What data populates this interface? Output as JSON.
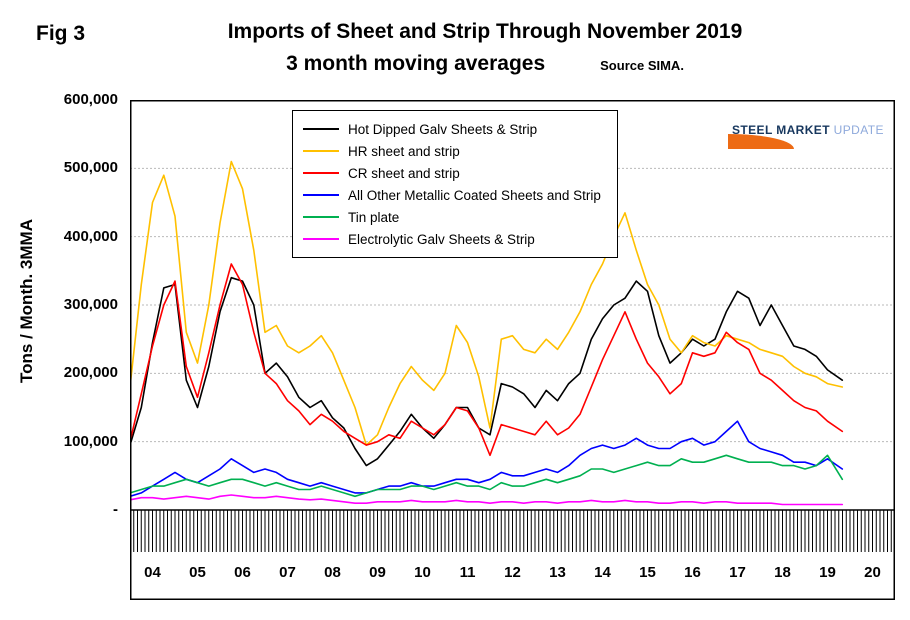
{
  "header": {
    "fig_label": "Fig 3",
    "title_line1": "Imports of Sheet and Strip Through November 2019",
    "title_line2": "3 month moving averages",
    "source": "Source SIMA."
  },
  "logo": {
    "steel": "STEEL",
    "market": "MARKET",
    "update": "UPDATE"
  },
  "chart_data": {
    "type": "line",
    "title": "Imports of Sheet and Strip Through November 2019",
    "subtitle": "3 month moving averages",
    "source": "Source SIMA.",
    "ylabel": "Tons / Month. 3MMA",
    "xlabel": "",
    "ylim": [
      0,
      600000
    ],
    "xlim": [
      2004,
      2021
    ],
    "grid": true,
    "legend_position": "top-inside",
    "y_ticks": [
      {
        "value": 600000,
        "label": "600,000"
      },
      {
        "value": 500000,
        "label": "500,000"
      },
      {
        "value": 400000,
        "label": "400,000"
      },
      {
        "value": 300000,
        "label": "300,000"
      },
      {
        "value": 200000,
        "label": "200,000"
      },
      {
        "value": 100000,
        "label": "100,000"
      },
      {
        "value": 0,
        "label": "-"
      }
    ],
    "x_ticks": [
      {
        "value": 2004.5,
        "label": "04"
      },
      {
        "value": 2005.5,
        "label": "05"
      },
      {
        "value": 2006.5,
        "label": "06"
      },
      {
        "value": 2007.5,
        "label": "07"
      },
      {
        "value": 2008.5,
        "label": "08"
      },
      {
        "value": 2009.5,
        "label": "09"
      },
      {
        "value": 2010.5,
        "label": "10"
      },
      {
        "value": 2011.5,
        "label": "11"
      },
      {
        "value": 2012.5,
        "label": "12"
      },
      {
        "value": 2013.5,
        "label": "13"
      },
      {
        "value": 2014.5,
        "label": "14"
      },
      {
        "value": 2015.5,
        "label": "15"
      },
      {
        "value": 2016.5,
        "label": "16"
      },
      {
        "value": 2017.5,
        "label": "17"
      },
      {
        "value": 2018.5,
        "label": "18"
      },
      {
        "value": 2019.5,
        "label": "19"
      },
      {
        "value": 2020.5,
        "label": "20"
      }
    ],
    "x": [
      2004,
      2004.25,
      2004.5,
      2004.75,
      2005,
      2005.25,
      2005.5,
      2005.75,
      2006,
      2006.25,
      2006.5,
      2006.75,
      2007,
      2007.25,
      2007.5,
      2007.75,
      2008,
      2008.25,
      2008.5,
      2008.75,
      2009,
      2009.25,
      2009.5,
      2009.75,
      2010,
      2010.25,
      2010.5,
      2010.75,
      2011,
      2011.25,
      2011.5,
      2011.75,
      2012,
      2012.25,
      2012.5,
      2012.75,
      2013,
      2013.25,
      2013.5,
      2013.75,
      2014,
      2014.25,
      2014.5,
      2014.75,
      2015,
      2015.25,
      2015.5,
      2015.75,
      2016,
      2016.25,
      2016.5,
      2016.75,
      2017,
      2017.25,
      2017.5,
      2017.75,
      2018,
      2018.25,
      2018.5,
      2018.75,
      2019,
      2019.25,
      2019.5,
      2019.83
    ],
    "series": [
      {
        "name": "Hot Dipped Galv Sheets & Strip",
        "color": "#000000",
        "values": [
          95000,
          150000,
          245000,
          325000,
          330000,
          190000,
          150000,
          210000,
          290000,
          340000,
          335000,
          300000,
          200000,
          215000,
          195000,
          165000,
          150000,
          160000,
          135000,
          120000,
          90000,
          65000,
          75000,
          95000,
          115000,
          140000,
          120000,
          105000,
          125000,
          150000,
          150000,
          120000,
          110000,
          185000,
          180000,
          170000,
          150000,
          175000,
          160000,
          185000,
          200000,
          250000,
          280000,
          300000,
          310000,
          335000,
          320000,
          255000,
          215000,
          230000,
          250000,
          240000,
          250000,
          290000,
          320000,
          310000,
          270000,
          300000,
          270000,
          240000,
          235000,
          225000,
          205000,
          190000
        ]
      },
      {
        "name": "HR sheet and strip",
        "color": "#FFC000",
        "values": [
          180000,
          330000,
          450000,
          490000,
          430000,
          260000,
          215000,
          300000,
          420000,
          510000,
          470000,
          380000,
          260000,
          270000,
          240000,
          230000,
          240000,
          255000,
          230000,
          190000,
          150000,
          95000,
          110000,
          150000,
          185000,
          210000,
          190000,
          175000,
          200000,
          270000,
          245000,
          195000,
          120000,
          250000,
          255000,
          235000,
          230000,
          250000,
          235000,
          260000,
          290000,
          330000,
          360000,
          400000,
          435000,
          380000,
          330000,
          300000,
          250000,
          230000,
          255000,
          245000,
          240000,
          255000,
          250000,
          245000,
          235000,
          230000,
          225000,
          210000,
          200000,
          195000,
          185000,
          180000
        ]
      },
      {
        "name": "CR sheet and strip",
        "color": "#FF0000",
        "values": [
          100000,
          170000,
          240000,
          300000,
          335000,
          210000,
          165000,
          230000,
          300000,
          360000,
          330000,
          260000,
          200000,
          185000,
          160000,
          145000,
          125000,
          140000,
          130000,
          115000,
          105000,
          95000,
          100000,
          110000,
          105000,
          130000,
          120000,
          110000,
          125000,
          150000,
          145000,
          120000,
          80000,
          125000,
          120000,
          115000,
          110000,
          130000,
          110000,
          120000,
          140000,
          180000,
          220000,
          255000,
          290000,
          250000,
          215000,
          195000,
          170000,
          185000,
          230000,
          225000,
          230000,
          260000,
          245000,
          235000,
          200000,
          190000,
          175000,
          160000,
          150000,
          145000,
          130000,
          115000
        ]
      },
      {
        "name": "All Other Metallic Coated Sheets and Strip",
        "color": "#0000FF",
        "values": [
          20000,
          25000,
          35000,
          45000,
          55000,
          45000,
          40000,
          50000,
          60000,
          75000,
          65000,
          55000,
          60000,
          55000,
          45000,
          40000,
          35000,
          40000,
          35000,
          30000,
          25000,
          25000,
          30000,
          35000,
          35000,
          40000,
          35000,
          35000,
          40000,
          45000,
          45000,
          40000,
          45000,
          55000,
          50000,
          50000,
          55000,
          60000,
          55000,
          65000,
          80000,
          90000,
          95000,
          90000,
          95000,
          105000,
          95000,
          90000,
          90000,
          100000,
          105000,
          95000,
          100000,
          115000,
          130000,
          100000,
          90000,
          85000,
          80000,
          70000,
          70000,
          65000,
          75000,
          60000
        ]
      },
      {
        "name": "Tin plate",
        "color": "#00B050",
        "values": [
          25000,
          30000,
          35000,
          35000,
          40000,
          45000,
          40000,
          35000,
          40000,
          45000,
          45000,
          40000,
          35000,
          40000,
          35000,
          30000,
          30000,
          35000,
          30000,
          25000,
          20000,
          25000,
          30000,
          30000,
          30000,
          35000,
          35000,
          30000,
          35000,
          40000,
          35000,
          35000,
          30000,
          40000,
          35000,
          35000,
          40000,
          45000,
          40000,
          45000,
          50000,
          60000,
          60000,
          55000,
          60000,
          65000,
          70000,
          65000,
          65000,
          75000,
          70000,
          70000,
          75000,
          80000,
          75000,
          70000,
          70000,
          70000,
          65000,
          65000,
          60000,
          65000,
          80000,
          45000
        ]
      },
      {
        "name": "Electrolytic Galv Sheets & Strip",
        "color": "#FF00FF",
        "values": [
          15000,
          18000,
          18000,
          16000,
          18000,
          20000,
          18000,
          16000,
          20000,
          22000,
          20000,
          18000,
          18000,
          20000,
          18000,
          16000,
          15000,
          16000,
          14000,
          12000,
          10000,
          10000,
          12000,
          12000,
          12000,
          14000,
          12000,
          12000,
          12000,
          14000,
          12000,
          12000,
          10000,
          12000,
          12000,
          10000,
          12000,
          12000,
          10000,
          12000,
          12000,
          14000,
          12000,
          12000,
          14000,
          12000,
          12000,
          10000,
          10000,
          12000,
          12000,
          10000,
          12000,
          12000,
          10000,
          10000,
          10000,
          10000,
          8000,
          8000,
          8000,
          8000,
          8000,
          8000
        ]
      }
    ]
  }
}
